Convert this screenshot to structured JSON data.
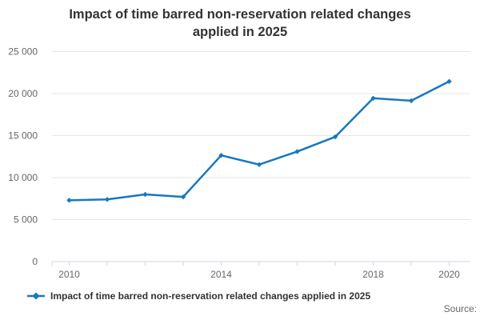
{
  "header": {
    "title": "Impact of time barred non-reservation related changes applied in 2025",
    "title_lines": [
      "Impact of time barred non-reservation related changes",
      "applied in 2025"
    ]
  },
  "legend": {
    "label": "Impact of time barred non-reservation related changes applied in 2025",
    "marker": "line-with-diamond-icon"
  },
  "footer": {
    "source_label": "Source:"
  },
  "chart_data": {
    "type": "line",
    "title": "Impact of time barred non-reservation related changes applied in 2025",
    "x": [
      2010,
      2011,
      2012,
      2013,
      2014,
      2015,
      2016,
      2017,
      2018,
      2019,
      2020
    ],
    "series": [
      {
        "name": "Impact of time barred non-reservation related changes applied in 2025",
        "values": [
          7300,
          7400,
          8000,
          7700,
          12650,
          11550,
          13100,
          14850,
          19450,
          19150,
          21450
        ]
      }
    ],
    "xlabel": "",
    "ylabel": "",
    "ylim": [
      0,
      25000
    ],
    "ytick_interval": 5000,
    "ytick_labels": [
      "0",
      "5 000",
      "10 000",
      "15 000",
      "20 000",
      "25 000"
    ],
    "xticks_labeled": [
      2010,
      2014,
      2018,
      2020
    ],
    "grid": true,
    "legend_position": "bottom-left",
    "colors": {
      "line": "#1878bd",
      "axis": "#ccd6eb",
      "grid": "#e6e6e6",
      "tick_label": "#666666",
      "text": "#333333"
    }
  }
}
